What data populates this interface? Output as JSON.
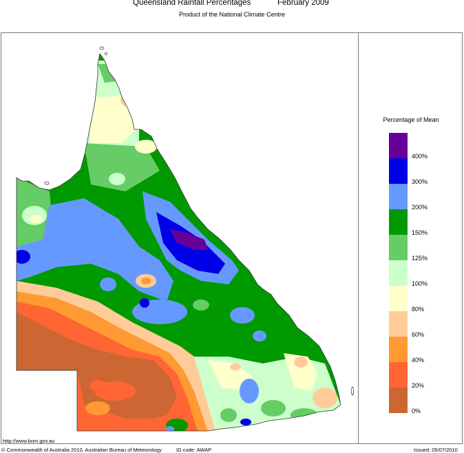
{
  "header": {
    "title_left": "Queensland Rainfall Percentages",
    "title_right": "February 2009",
    "subtitle": "Product of the National Climate Centre"
  },
  "legend": {
    "title": "Percentage of Mean",
    "bins": [
      {
        "label": "400%",
        "color": "#660099"
      },
      {
        "label": "300%",
        "color": "#0000e6"
      },
      {
        "label": "200%",
        "color": "#6699ff"
      },
      {
        "label": "150%",
        "color": "#009900"
      },
      {
        "label": "125%",
        "color": "#66cc66"
      },
      {
        "label": "100%",
        "color": "#ccffcc"
      },
      {
        "label": "80%",
        "color": "#ffffcc"
      },
      {
        "label": "60%",
        "color": "#ffcc99"
      },
      {
        "label": "40%",
        "color": "#ff9933"
      },
      {
        "label": "20%",
        "color": "#ff6633"
      },
      {
        "label": "0%",
        "color": "#cc6633"
      }
    ]
  },
  "footer": {
    "url": "http://www.bom.gov.au",
    "copyright": "© Commonwealth of Australia 2010, Australian Bureau of Meteorology",
    "id_code": "ID code: AWAP",
    "issued": "Issued: 05/07/2010"
  }
}
